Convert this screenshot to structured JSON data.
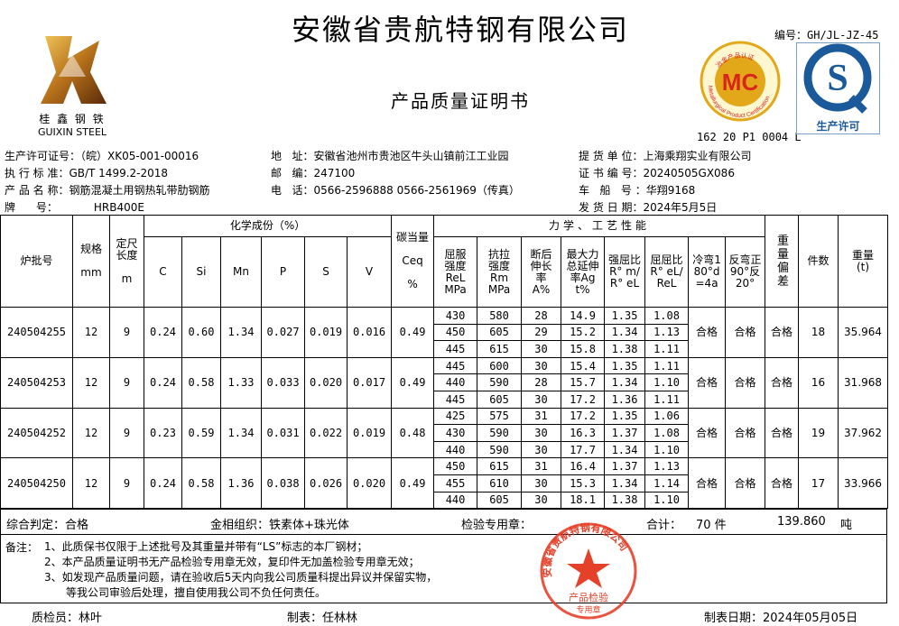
{
  "header": {
    "title": "安徽省贵航特钢有限公司",
    "subtitle": "产品质量证明书",
    "doc_no": "编号：GH/JL-JZ-45",
    "logo_cn": "桂 鑫 钢 铁",
    "logo_en": "GUIXIN STEEL",
    "mc_text": "MC",
    "mc_ring": "Metallurgical Product Certification",
    "mc_ring_cn": "冶金产品认证",
    "mc_code": "162 20 P1 0004 L",
    "qs_text": "生产许可",
    "colors": {
      "mc_gold": "#e3a81a",
      "mc_red": "#d8261c",
      "qs_blue": "#1a5a9a",
      "stamp_red": "#e5412a"
    }
  },
  "info": {
    "left": [
      {
        "label": "生产许可证号：",
        "value": "（皖）XK05-001-00016"
      },
      {
        "label": "执 行 标 准：",
        "value": "GB/T 1499.2-2018"
      },
      {
        "label": "产 品 名 称：",
        "value": "钢筋混凝土用钢热轧带肋钢筋"
      },
      {
        "label": "牌      号：",
        "value": "HRB400E"
      }
    ],
    "mid": [
      {
        "label": "地   址：",
        "value": "安徽省池州市贵池区牛头山镇前江工业园"
      },
      {
        "label": "邮   编：",
        "value": "247100"
      },
      {
        "label": "电   话：",
        "value": "0566-2596888  0566-2561969（传真）"
      }
    ],
    "right": [
      {
        "label": "提 货 单 位：",
        "value": "上海乘翔实业有限公司"
      },
      {
        "label": "证 书 编 号：",
        "value": "20240505GX086"
      },
      {
        "label": "车   船   号 ：",
        "value": "华翔9168"
      },
      {
        "label": "发 货 日 期：",
        "value": "2024年5月5日"
      }
    ]
  },
  "table": {
    "h": {
      "batch": "炉批号",
      "spec": "规格",
      "spec_u": "mm",
      "len": "定尺长度",
      "len_u": "m",
      "chem": "化学成份（%）",
      "c": "C",
      "si": "Si",
      "mn": "Mn",
      "p": "P",
      "s": "S",
      "v": "V",
      "ceq": "碳当量",
      "ceq2": "Ceq",
      "ceq_u": "%",
      "mech": "力学、工艺性能",
      "rel": "屈服强度ReLMPa",
      "rm": "抗拉强度RmMPa",
      "a": "断后伸长率A%",
      "agt": "最大力总延伸率Agt%",
      "r1": "强屈比R° m/R° eL",
      "r2": "屈屈比R° eL/ReL",
      "cold": "冷弯180°d=4a",
      "rev": "反弯正90°反20°",
      "dev": "重量偏差",
      "pcs": "件数",
      "wt": "重量(t)"
    },
    "rows": [
      {
        "batch": "240504255",
        "spec": "12",
        "len": "9",
        "c": "0.24",
        "si": "0.60",
        "mn": "1.34",
        "p": "0.027",
        "s": "0.019",
        "v": "0.016",
        "ceq": "0.49",
        "mech": [
          [
            "430",
            "580",
            "28",
            "14.9",
            "1.35",
            "1.08"
          ],
          [
            "450",
            "605",
            "29",
            "15.2",
            "1.34",
            "1.13"
          ],
          [
            "445",
            "615",
            "30",
            "15.8",
            "1.38",
            "1.11"
          ]
        ],
        "cold": "合格",
        "rev": "合格",
        "dev": "合格",
        "pcs": "18",
        "wt": "35.964"
      },
      {
        "batch": "240504253",
        "spec": "12",
        "len": "9",
        "c": "0.24",
        "si": "0.58",
        "mn": "1.33",
        "p": "0.033",
        "s": "0.020",
        "v": "0.017",
        "ceq": "0.49",
        "mech": [
          [
            "445",
            "600",
            "30",
            "15.4",
            "1.35",
            "1.11"
          ],
          [
            "440",
            "590",
            "28",
            "15.7",
            "1.34",
            "1.10"
          ],
          [
            "445",
            "605",
            "30",
            "17.2",
            "1.36",
            "1.11"
          ]
        ],
        "cold": "合格",
        "rev": "合格",
        "dev": "合格",
        "pcs": "16",
        "wt": "31.968"
      },
      {
        "batch": "240504252",
        "spec": "12",
        "len": "9",
        "c": "0.23",
        "si": "0.59",
        "mn": "1.34",
        "p": "0.031",
        "s": "0.022",
        "v": "0.019",
        "ceq": "0.48",
        "mech": [
          [
            "425",
            "575",
            "31",
            "17.2",
            "1.35",
            "1.06"
          ],
          [
            "430",
            "590",
            "30",
            "16.3",
            "1.37",
            "1.08"
          ],
          [
            "440",
            "590",
            "30",
            "17.7",
            "1.34",
            "1.10"
          ]
        ],
        "cold": "合格",
        "rev": "合格",
        "dev": "合格",
        "pcs": "19",
        "wt": "37.962"
      },
      {
        "batch": "240504250",
        "spec": "12",
        "len": "9",
        "c": "0.24",
        "si": "0.58",
        "mn": "1.36",
        "p": "0.038",
        "s": "0.026",
        "v": "0.020",
        "ceq": "0.49",
        "mech": [
          [
            "450",
            "615",
            "31",
            "16.4",
            "1.37",
            "1.13"
          ],
          [
            "455",
            "610",
            "30",
            "15.3",
            "1.34",
            "1.14"
          ],
          [
            "440",
            "605",
            "30",
            "18.1",
            "1.38",
            "1.10"
          ]
        ],
        "cold": "合格",
        "rev": "合格",
        "dev": "合格",
        "pcs": "17",
        "wt": "33.966"
      }
    ]
  },
  "summary": {
    "judge": "综合判定：合格",
    "metal": "金相组织：铁素体+珠光体",
    "stamp_label": "检验专用章：",
    "total_label": "合计：",
    "total_pcs": "70 件",
    "total_wt": "139.860",
    "unit": "吨"
  },
  "notes": {
    "label": "备注：",
    "lines": [
      "1、此质保书仅限于上述批号及其重量并带有“LS”标志的本厂钢材；",
      "2、本产品质量证明书无产品检验专用章无效，复印件无加盖检验专用章无效；",
      "3、如发现产品质量问题，请在验收后5天内向我公司质量科提出异议并保留实物，",
      "等我公司审验后处理，擅自使用我公司不负任何责任。"
    ]
  },
  "stamp": {
    "ring": "安徽省贵航特钢有限公司",
    "center": "产品检验",
    "bottom": "专用章"
  },
  "footer": {
    "inspector": "质检员：林叶",
    "maker": "制表：任林林",
    "date": "制表日期：2024年05月05日"
  }
}
